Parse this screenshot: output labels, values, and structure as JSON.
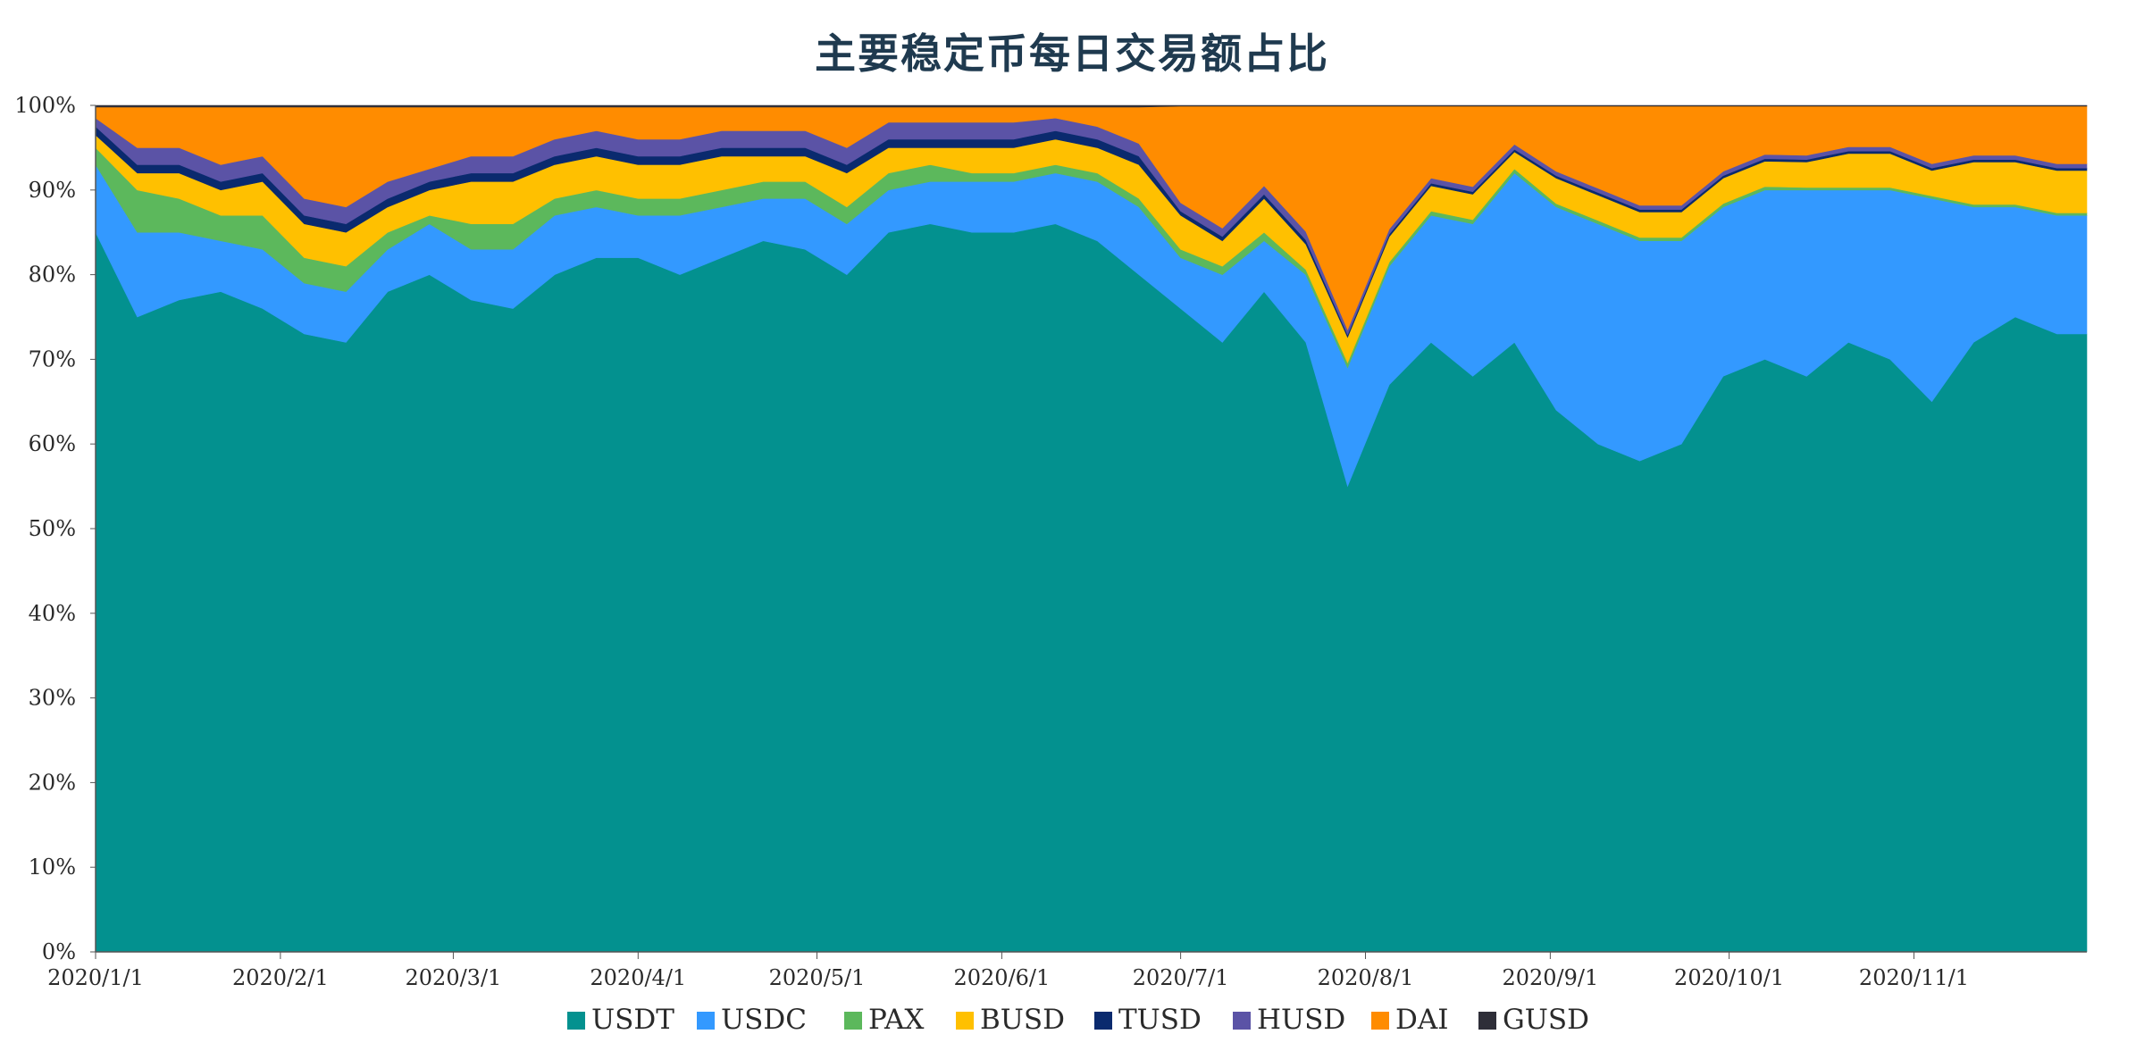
{
  "chart_data": {
    "type": "area",
    "stacked": true,
    "normalized": true,
    "title": "主要稳定币每日交易额占比",
    "xlabel": "",
    "ylabel": "",
    "x_start": "2020-01-01",
    "x_end": "2020-11-30",
    "ylim": [
      0,
      100
    ],
    "y_ticks": [
      "0%",
      "10%",
      "20%",
      "30%",
      "40%",
      "50%",
      "60%",
      "70%",
      "80%",
      "90%",
      "100%"
    ],
    "x_ticks": [
      {
        "date": "2020-01-01",
        "label": "2020/1/1"
      },
      {
        "date": "2020-02-01",
        "label": "2020/2/1"
      },
      {
        "date": "2020-03-01",
        "label": "2020/3/1"
      },
      {
        "date": "2020-04-01",
        "label": "2020/4/1"
      },
      {
        "date": "2020-05-01",
        "label": "2020/5/1"
      },
      {
        "date": "2020-06-01",
        "label": "2020/6/1"
      },
      {
        "date": "2020-07-01",
        "label": "2020/7/1"
      },
      {
        "date": "2020-08-01",
        "label": "2020/8/1"
      },
      {
        "date": "2020-09-01",
        "label": "2020/9/1"
      },
      {
        "date": "2020-10-01",
        "label": "2020/10/1"
      },
      {
        "date": "2020-11-01",
        "label": "2020/11/1"
      }
    ],
    "grid": false,
    "legend_position": "bottom",
    "dates": [
      "2020-01-01",
      "2020-01-08",
      "2020-01-15",
      "2020-01-22",
      "2020-01-29",
      "2020-02-05",
      "2020-02-12",
      "2020-02-19",
      "2020-02-26",
      "2020-03-04",
      "2020-03-11",
      "2020-03-18",
      "2020-03-25",
      "2020-04-01",
      "2020-04-08",
      "2020-04-15",
      "2020-04-22",
      "2020-04-29",
      "2020-05-06",
      "2020-05-13",
      "2020-05-20",
      "2020-05-27",
      "2020-06-03",
      "2020-06-10",
      "2020-06-17",
      "2020-06-24",
      "2020-07-01",
      "2020-07-08",
      "2020-07-15",
      "2020-07-22",
      "2020-07-29",
      "2020-08-05",
      "2020-08-12",
      "2020-08-19",
      "2020-08-26",
      "2020-09-02",
      "2020-09-09",
      "2020-09-16",
      "2020-09-23",
      "2020-09-30",
      "2020-10-07",
      "2020-10-14",
      "2020-10-21",
      "2020-10-28",
      "2020-11-04",
      "2020-11-11",
      "2020-11-18",
      "2020-11-25",
      "2020-11-30"
    ],
    "series": [
      {
        "name": "USDT",
        "color": "#03918F",
        "values": [
          85,
          75,
          77,
          78,
          76,
          73,
          72,
          78,
          80,
          77,
          76,
          80,
          82,
          82,
          80,
          82,
          84,
          83,
          80,
          85,
          86,
          85,
          85,
          86,
          84,
          80,
          76,
          72,
          78,
          72,
          55,
          67,
          72,
          68,
          72,
          64,
          60,
          58,
          60,
          68,
          70,
          68,
          72,
          70,
          65,
          72,
          75,
          73,
          73
        ]
      },
      {
        "name": "USDC",
        "color": "#3399FF",
        "values": [
          8,
          10,
          8,
          6,
          7,
          6,
          6,
          5,
          6,
          6,
          7,
          7,
          6,
          5,
          7,
          6,
          5,
          6,
          6,
          5,
          5,
          6,
          6,
          6,
          7,
          8,
          6,
          8,
          6,
          8,
          14,
          14,
          15,
          18,
          20,
          24,
          26,
          26,
          24,
          20,
          20,
          22,
          18,
          20,
          24,
          16,
          13,
          14,
          14
        ]
      },
      {
        "name": "PAX",
        "color": "#5CB85C",
        "values": [
          2,
          5,
          4,
          3,
          4,
          3,
          3,
          2,
          1,
          3,
          3,
          2,
          2,
          2,
          2,
          2,
          2,
          2,
          2,
          2,
          2,
          1,
          1,
          1,
          1,
          1,
          1,
          1,
          1,
          0.6,
          0.6,
          0.5,
          0.5,
          0.5,
          0.5,
          0.4,
          0.4,
          0.4,
          0.4,
          0.4,
          0.4,
          0.3,
          0.3,
          0.3,
          0.3,
          0.3,
          0.3,
          0.3,
          0.3
        ]
      },
      {
        "name": "BUSD",
        "color": "#FFC000",
        "values": [
          1.5,
          2,
          3,
          3,
          4,
          4,
          4,
          3,
          3,
          5,
          5,
          4,
          4,
          4,
          4,
          4,
          3,
          3,
          4,
          3,
          2,
          3,
          3,
          3,
          3,
          4,
          4,
          3,
          4,
          3,
          3,
          3,
          3,
          3,
          2,
          3,
          3,
          3,
          3,
          3,
          3,
          3,
          4,
          4,
          3,
          5,
          5,
          5,
          5
        ]
      },
      {
        "name": "TUSD",
        "color": "#0A2A6E",
        "values": [
          1,
          1,
          1,
          1,
          1,
          1,
          1,
          1,
          1,
          1,
          1,
          1,
          1,
          1,
          1,
          1,
          1,
          1,
          1,
          1,
          1,
          1,
          1,
          1,
          1,
          1,
          0.5,
          0.5,
          0.5,
          0.5,
          0.3,
          0.3,
          0.3,
          0.3,
          0.3,
          0.3,
          0.3,
          0.3,
          0.3,
          0.3,
          0.3,
          0.3,
          0.3,
          0.3,
          0.3,
          0.3,
          0.3,
          0.3,
          0.3
        ]
      },
      {
        "name": "HUSD",
        "color": "#5B53A6",
        "values": [
          1,
          2,
          2,
          2,
          2,
          2,
          2,
          2,
          1.5,
          2,
          2,
          2,
          2,
          2,
          2,
          2,
          2,
          2,
          2,
          2,
          2,
          2,
          2,
          1.5,
          1.5,
          1.5,
          1,
          1,
          1,
          1,
          0.6,
          0.6,
          0.6,
          0.6,
          0.6,
          0.5,
          0.5,
          0.5,
          0.5,
          0.5,
          0.5,
          0.5,
          0.5,
          0.5,
          0.5,
          0.5,
          0.5,
          0.5,
          0.5
        ]
      },
      {
        "name": "DAI",
        "color": "#FF8C00",
        "values": [
          1.3,
          4.8,
          4.8,
          6.8,
          5.8,
          10.8,
          11.8,
          8.8,
          7.3,
          5.8,
          5.8,
          3.8,
          2.8,
          3.8,
          3.8,
          2.8,
          2.8,
          2.8,
          4.8,
          1.8,
          1.8,
          1.8,
          1.8,
          1.3,
          2.3,
          4.3,
          11.4,
          14.4,
          9.4,
          14.8,
          26.4,
          14.5,
          8.5,
          9.5,
          4.5,
          7.7,
          9.7,
          11.7,
          11.7,
          7.7,
          5.7,
          5.8,
          4.8,
          4.8,
          6.8,
          5.8,
          5.8,
          6.8,
          6.8
        ]
      },
      {
        "name": "GUSD",
        "color": "#2E2E38",
        "values": [
          0.2,
          0.2,
          0.2,
          0.2,
          0.2,
          0.2,
          0.2,
          0.2,
          0.2,
          0.2,
          0.2,
          0.2,
          0.2,
          0.2,
          0.2,
          0.2,
          0.2,
          0.2,
          0.2,
          0.2,
          0.2,
          0.2,
          0.2,
          0.2,
          0.2,
          0.2,
          0.1,
          0.1,
          0.1,
          0.1,
          0.1,
          0.1,
          0.1,
          0.1,
          0.1,
          0.1,
          0.1,
          0.1,
          0.1,
          0.1,
          0.1,
          0.1,
          0.1,
          0.1,
          0.1,
          0.1,
          0.1,
          0.1,
          0.1
        ]
      }
    ]
  }
}
